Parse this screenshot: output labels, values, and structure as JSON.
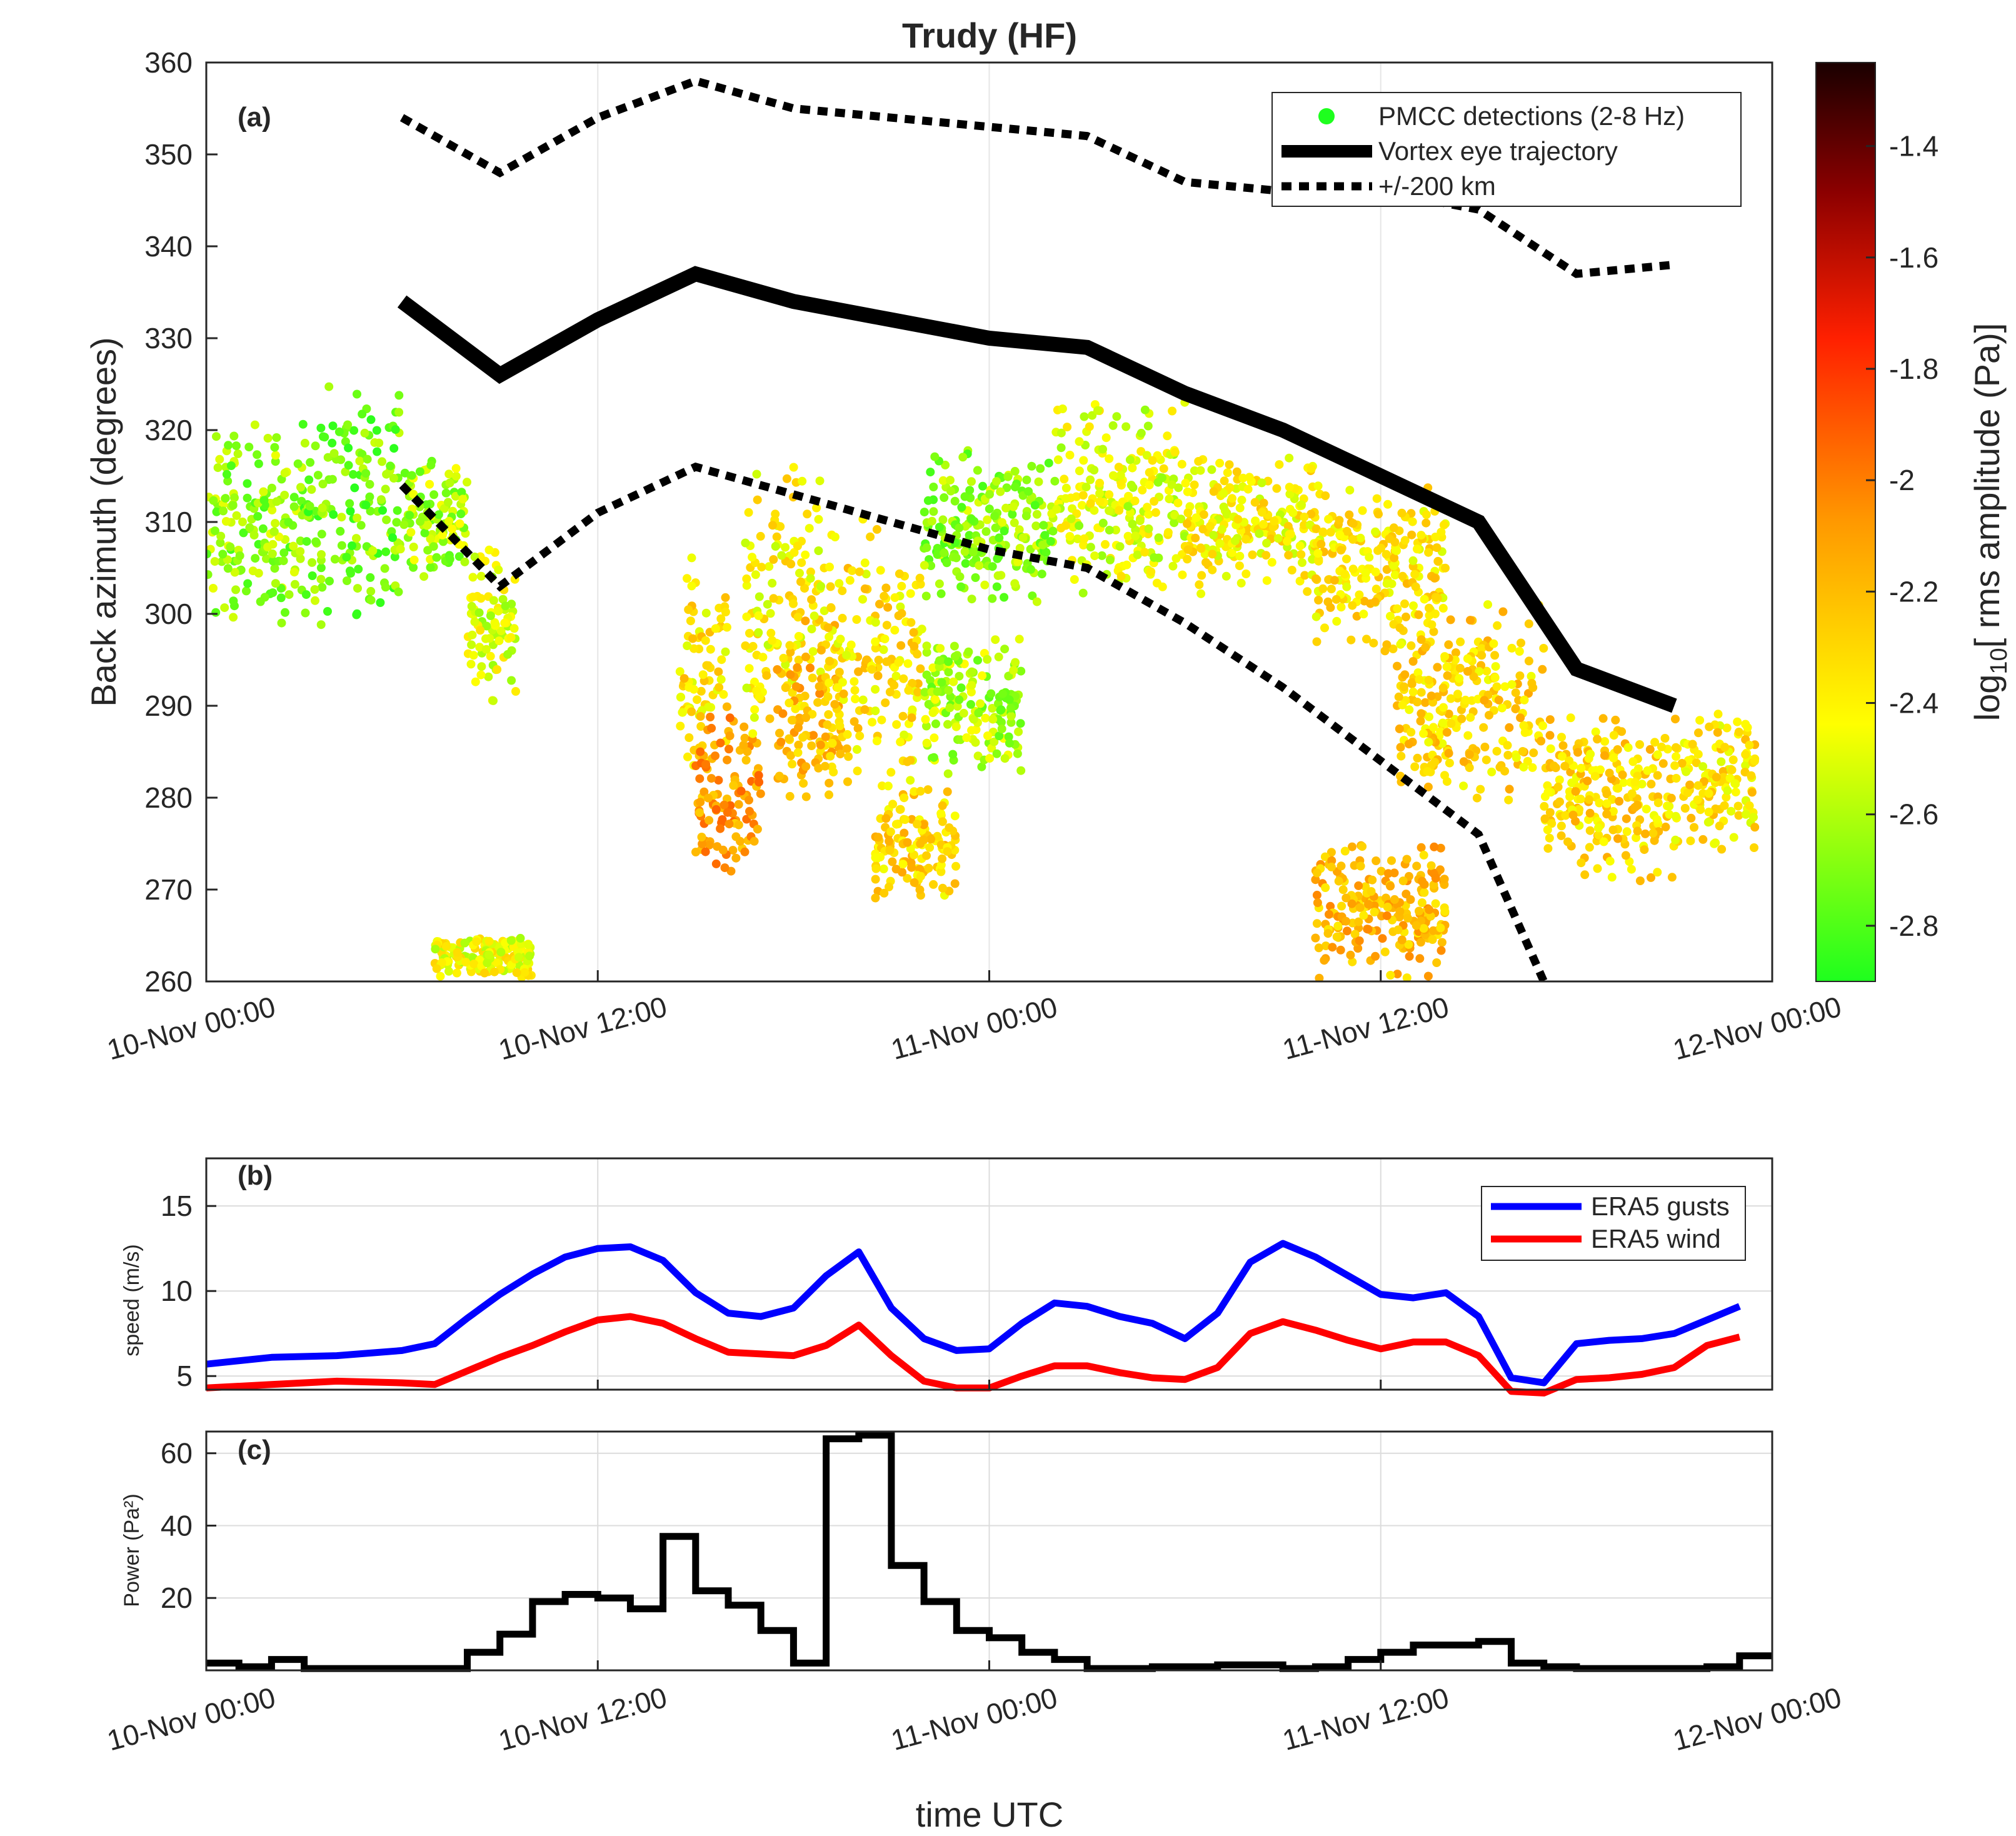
{
  "figure": {
    "title": "Trudy (HF)",
    "xlabel_bottom": "time UTC"
  },
  "time_ticks": [
    "10-Nov 00:00",
    "10-Nov 12:00",
    "11-Nov 00:00",
    "11-Nov 12:00",
    "12-Nov 00:00"
  ],
  "chart_data": [
    {
      "panel": "(a)",
      "type": "scatter",
      "xlim_hours": [
        0,
        48
      ],
      "ylabel": "Back azimuth (degrees)",
      "ylim": [
        260,
        360
      ],
      "yticks": [
        260,
        270,
        280,
        290,
        300,
        310,
        320,
        330,
        340,
        350,
        360
      ],
      "legend": {
        "position": "top-right",
        "entries": [
          "PMCC detections (2-8 Hz)",
          "Vortex eye trajectory",
          "+/-200 km"
        ]
      },
      "colorbar": {
        "label_prefix": "log",
        "label_sub": "10",
        "label_suffix": "[ rms amplitude (Pa)]",
        "range": [
          -2.9,
          -1.25
        ],
        "ticks": [
          "-1.4",
          "-1.6",
          "-1.8",
          "-2",
          "-2.2",
          "-2.4",
          "-2.6",
          "-2.8"
        ],
        "tick_values": [
          -1.4,
          -1.6,
          -1.8,
          -2.0,
          -2.2,
          -2.4,
          -2.6,
          -2.8
        ]
      },
      "series": [
        {
          "name": "Vortex eye trajectory",
          "points": [
            [
              6,
              334
            ],
            [
              9,
              326
            ],
            [
              12,
              332
            ],
            [
              15,
              337
            ],
            [
              18,
              334
            ],
            [
              21,
              332
            ],
            [
              24,
              330
            ],
            [
              27,
              329
            ],
            [
              30,
              324
            ],
            [
              33,
              320
            ],
            [
              36,
              315
            ],
            [
              39,
              310
            ],
            [
              42,
              294
            ],
            [
              45,
              290
            ]
          ]
        },
        {
          "name": "+200 km",
          "points": [
            [
              6,
              354
            ],
            [
              9,
              348
            ],
            [
              12,
              354
            ],
            [
              15,
              358
            ],
            [
              18,
              355
            ],
            [
              21,
              354
            ],
            [
              24,
              353
            ],
            [
              27,
              352
            ],
            [
              30,
              347
            ],
            [
              33,
              346
            ],
            [
              36,
              346
            ],
            [
              39,
              344
            ],
            [
              42,
              337
            ],
            [
              45,
              338
            ]
          ]
        },
        {
          "name": "-200 km",
          "points": [
            [
              6,
              314
            ],
            [
              9,
              303
            ],
            [
              12,
              311
            ],
            [
              15,
              316
            ],
            [
              18,
              313
            ],
            [
              21,
              310
            ],
            [
              24,
              307
            ],
            [
              27,
              305
            ],
            [
              30,
              299
            ],
            [
              33,
              292
            ],
            [
              36,
              284
            ],
            [
              39,
              276
            ],
            [
              41,
              260
            ]
          ]
        }
      ],
      "detection_clusters": [
        {
          "t": [
            0,
            3
          ],
          "az": [
            297,
            322
          ],
          "amp": -2.65
        },
        {
          "t": [
            3,
            6
          ],
          "az": [
            298,
            326
          ],
          "amp": -2.7
        },
        {
          "t": [
            6,
            8
          ],
          "az": [
            303,
            318
          ],
          "amp": -2.6
        },
        {
          "t": [
            8,
            9.5
          ],
          "az": [
            290,
            308
          ],
          "amp": -2.5
        },
        {
          "t": [
            7,
            10
          ],
          "az": [
            260,
            265
          ],
          "amp": -2.45
        },
        {
          "t": [
            14.5,
            16
          ],
          "az": [
            277,
            308
          ],
          "amp": -2.35
        },
        {
          "t": [
            15,
            17
          ],
          "az": [
            270,
            290
          ],
          "amp": -2.1
        },
        {
          "t": [
            16.5,
            19
          ],
          "az": [
            284,
            318
          ],
          "amp": -2.4
        },
        {
          "t": [
            17.5,
            19.5
          ],
          "az": [
            276,
            303
          ],
          "amp": -2.2
        },
        {
          "t": [
            19,
            22
          ],
          "az": [
            278,
            312
          ],
          "amp": -2.35
        },
        {
          "t": [
            20.5,
            23
          ],
          "az": [
            268,
            282
          ],
          "amp": -2.3
        },
        {
          "t": [
            22,
            25
          ],
          "az": [
            282,
            298
          ],
          "amp": -2.6
        },
        {
          "t": [
            22,
            26
          ],
          "az": [
            301,
            318
          ],
          "amp": -2.65
        },
        {
          "t": [
            26,
            30
          ],
          "az": [
            300,
            324
          ],
          "amp": -2.5
        },
        {
          "t": [
            30,
            34
          ],
          "az": [
            302,
            318
          ],
          "amp": -2.4
        },
        {
          "t": [
            34,
            38
          ],
          "az": [
            295,
            315
          ],
          "amp": -2.35
        },
        {
          "t": [
            36.5,
            41
          ],
          "az": [
            278,
            302
          ],
          "amp": -2.3
        },
        {
          "t": [
            41,
            45
          ],
          "az": [
            270,
            290
          ],
          "amp": -2.3
        },
        {
          "t": [
            45,
            47.5
          ],
          "az": [
            274,
            290
          ],
          "amp": -2.35
        },
        {
          "t": [
            34,
            38
          ],
          "az": [
            260,
            276
          ],
          "amp": -2.2
        }
      ]
    },
    {
      "panel": "(b)",
      "type": "line",
      "xlim_hours": [
        0,
        48
      ],
      "ylabel": "speed (m/s)",
      "ylim": [
        4.2,
        17.8
      ],
      "yticks": [
        5,
        10,
        15
      ],
      "legend": {
        "position": "top-right",
        "entries": [
          "ERA5 gusts",
          "ERA5 wind"
        ]
      },
      "x_hours": [
        0,
        2,
        4,
        6,
        7,
        8,
        9,
        10,
        11,
        12,
        13,
        14,
        15,
        16,
        17,
        18,
        19,
        20,
        21,
        22,
        23,
        24,
        25,
        26,
        27,
        28,
        29,
        30,
        31,
        32,
        33,
        34,
        35,
        36,
        37,
        38,
        39,
        40,
        41,
        42,
        43,
        44,
        45,
        46,
        47
      ],
      "series": [
        {
          "name": "ERA5 gusts",
          "color": "#0000ff",
          "values": [
            5.7,
            6.1,
            6.2,
            6.5,
            6.9,
            8.4,
            9.8,
            11.0,
            12.0,
            12.5,
            12.6,
            11.8,
            9.9,
            8.7,
            8.5,
            9.0,
            10.9,
            12.3,
            9.0,
            7.2,
            6.5,
            6.6,
            8.1,
            9.3,
            9.1,
            8.5,
            8.1,
            7.2,
            8.7,
            11.7,
            12.8,
            12.0,
            10.9,
            9.8,
            9.6,
            9.9,
            8.5,
            4.9,
            4.6,
            6.9,
            7.1,
            7.2,
            7.5,
            8.3,
            9.1
          ]
        },
        {
          "name": "ERA5 wind",
          "color": "#ff0000",
          "values": [
            4.3,
            4.5,
            4.7,
            4.6,
            4.5,
            5.3,
            6.1,
            6.8,
            7.6,
            8.3,
            8.5,
            8.1,
            7.2,
            6.4,
            6.3,
            6.2,
            6.8,
            8.0,
            6.2,
            4.7,
            4.3,
            4.3,
            5.0,
            5.6,
            5.6,
            5.2,
            4.9,
            4.8,
            5.5,
            7.5,
            8.2,
            7.7,
            7.1,
            6.6,
            7.0,
            7.0,
            6.2,
            4.1,
            4.0,
            4.8,
            4.9,
            5.1,
            5.5,
            6.8,
            7.3
          ]
        }
      ]
    },
    {
      "panel": "(c)",
      "type": "line",
      "step": true,
      "xlim_hours": [
        0,
        48
      ],
      "ylabel": "Power (Pa²)",
      "ylim": [
        0,
        66
      ],
      "yticks": [
        20,
        40,
        60
      ],
      "bin_hours": 1,
      "series": [
        {
          "name": "Power",
          "color": "#000000",
          "values": [
            2,
            1,
            3,
            0.5,
            0.5,
            0.5,
            0.5,
            0.5,
            5,
            10,
            19,
            21,
            20,
            17,
            37,
            22,
            18,
            11,
            2,
            64,
            65,
            29,
            19,
            11,
            9,
            5,
            3,
            0.5,
            0.5,
            1,
            1,
            1.5,
            1.5,
            0.5,
            1,
            3,
            5,
            7,
            7,
            8,
            2,
            1,
            0.5,
            0.5,
            0.5,
            0.5,
            1,
            4
          ]
        }
      ]
    }
  ]
}
